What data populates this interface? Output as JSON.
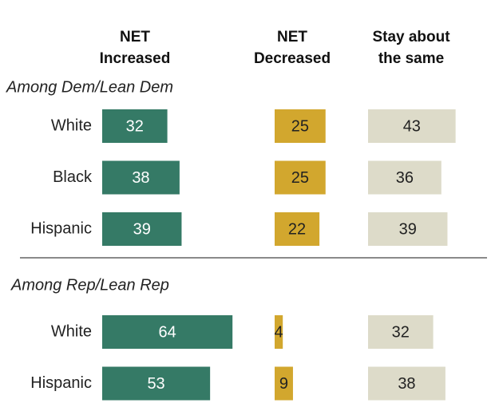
{
  "chart_data": {
    "type": "bar",
    "series": [
      {
        "name": "NET Increased",
        "color": "#357a66"
      },
      {
        "name": "NET Decreased",
        "color": "#d2a72e"
      },
      {
        "name": "Stay about the same",
        "color": "#dddbc9"
      }
    ],
    "groups": [
      {
        "label": "Among Dem/Lean Dem",
        "categories": [
          "White",
          "Black",
          "Hispanic"
        ],
        "values": [
          [
            32,
            38,
            39
          ],
          [
            25,
            25,
            22
          ],
          [
            43,
            36,
            39
          ]
        ]
      },
      {
        "label": "Among Rep/Lean Rep",
        "categories": [
          "White",
          "Hispanic"
        ],
        "values": [
          [
            64,
            53
          ],
          [
            4,
            9
          ],
          [
            32,
            38
          ]
        ]
      }
    ]
  }
}
